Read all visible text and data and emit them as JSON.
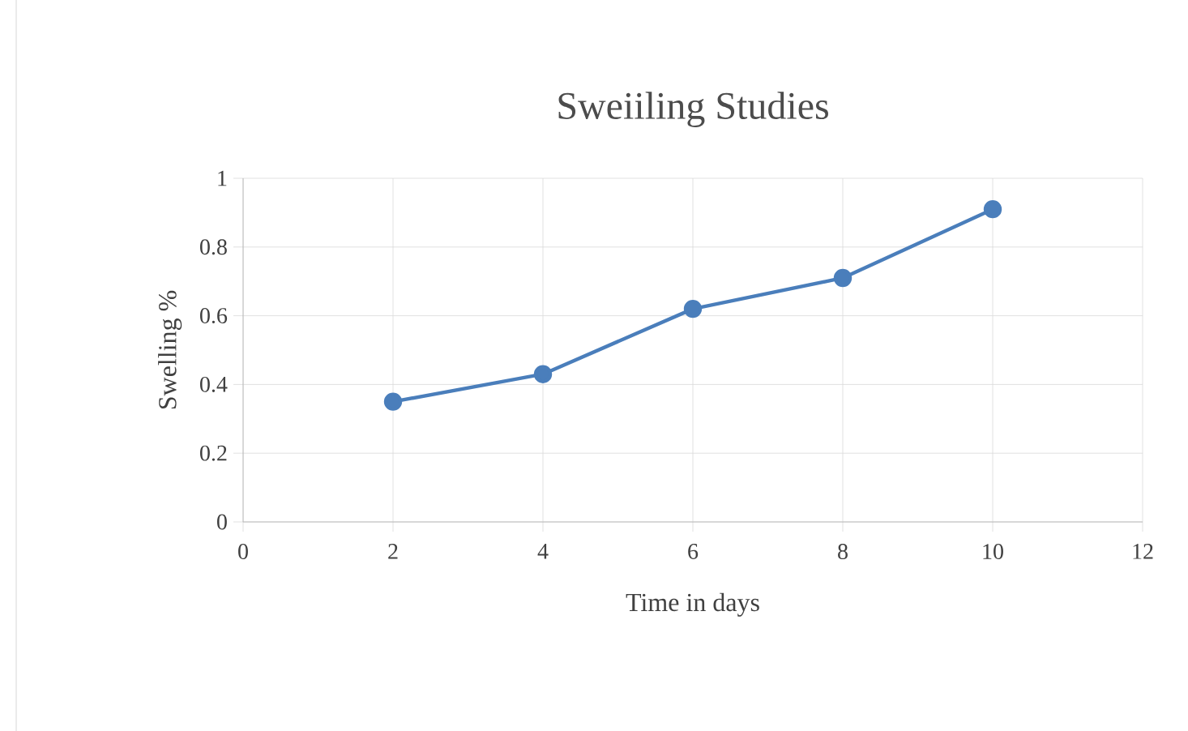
{
  "chart_data": {
    "type": "line",
    "title": "Sweiiling Studies",
    "xlabel": "Time in days",
    "ylabel": "Swelling %",
    "x": [
      2,
      4,
      6,
      8,
      10
    ],
    "series": [
      {
        "color": "#4a7ebb",
        "values": [
          0.35,
          0.43,
          0.62,
          0.71,
          0.91
        ]
      }
    ],
    "xlim": [
      0,
      12
    ],
    "xticks": [
      0,
      2,
      4,
      6,
      8,
      10,
      12
    ],
    "ylim": [
      0,
      1
    ],
    "yticks": [
      0,
      0.2,
      0.4,
      0.6,
      0.8,
      1
    ],
    "grid": true,
    "marker": "circle",
    "line_style": "solid"
  }
}
